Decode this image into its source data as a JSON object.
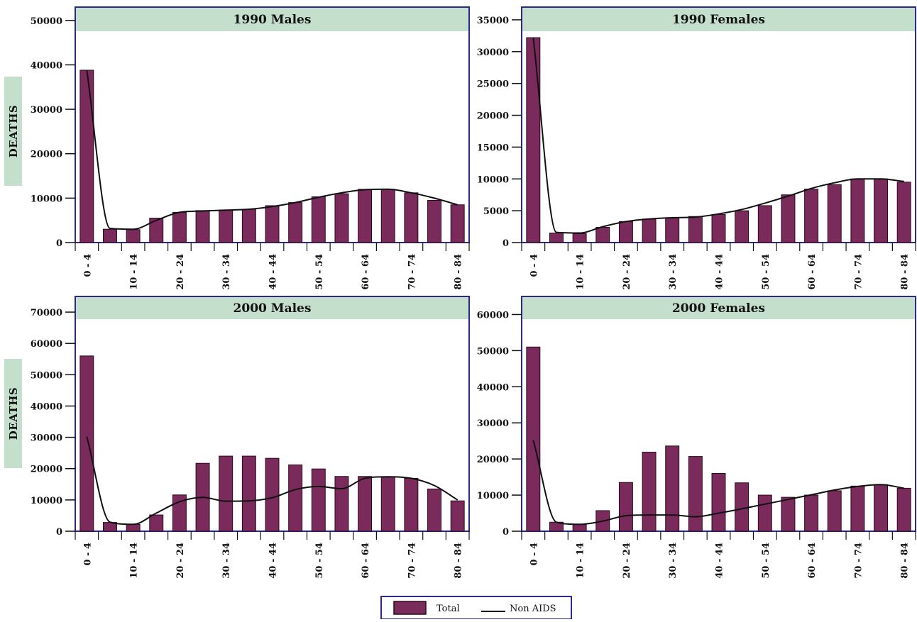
{
  "colors": {
    "bar": "#7b2a5c",
    "bar_stroke": "#2a0a1e",
    "line": "#111111",
    "frame": "#2b2a8a",
    "title_bg": "#c4e0cd",
    "side_label_bg": "#c4e0cd"
  },
  "side_labels": [
    "DEATHS",
    "DEATHS"
  ],
  "legend": {
    "total_label": "Total",
    "nonaids_label": "Non AIDS"
  },
  "chart_data": [
    {
      "type": "bar",
      "title": "1990 Males",
      "categories": [
        "0 - 4",
        "5 - 9",
        "10 - 14",
        "15 - 19",
        "20 - 24",
        "25 - 29",
        "30 - 34",
        "35 - 39",
        "40 - 44",
        "45 - 49",
        "50 - 54",
        "55 - 59",
        "60 - 64",
        "65 - 69",
        "70 - 74",
        "75 - 79",
        "80 - 84"
      ],
      "tick_labels": [
        "0 - 4",
        "",
        "10 - 14",
        "",
        "20 - 24",
        "",
        "30 - 34",
        "",
        "40 - 44",
        "",
        "50 - 54",
        "",
        "60 - 64",
        "",
        "70 - 74",
        "",
        "80 - 84"
      ],
      "ylim": [
        0,
        53000
      ],
      "yticks": [
        0,
        10000,
        20000,
        30000,
        40000,
        50000
      ],
      "series": [
        {
          "name": "Total",
          "values": [
            38800,
            3000,
            2900,
            5500,
            6800,
            7200,
            7300,
            7500,
            8300,
            9000,
            10300,
            11000,
            12000,
            12000,
            11200,
            9500,
            8500
          ]
        },
        {
          "name": "Non AIDS",
          "values": [
            38800,
            3200,
            3000,
            5000,
            6800,
            7100,
            7300,
            7500,
            8100,
            9000,
            10200,
            11200,
            11900,
            12000,
            11200,
            10000,
            8500
          ]
        }
      ]
    },
    {
      "type": "bar",
      "title": "1990 Females",
      "categories": [
        "0 - 4",
        "5 - 9",
        "10 - 14",
        "15 - 19",
        "20 - 24",
        "25 - 29",
        "30 - 34",
        "35 - 39",
        "40 - 44",
        "45 - 49",
        "50 - 54",
        "55 - 59",
        "60 - 64",
        "65 - 69",
        "70 - 74",
        "75 - 79",
        "80 - 84"
      ],
      "tick_labels": [
        "0 - 4",
        "",
        "10 - 14",
        "",
        "20 - 24",
        "",
        "30 - 34",
        "",
        "40 - 44",
        "",
        "50 - 54",
        "",
        "60 - 64",
        "",
        "70 - 74",
        "",
        "80 - 84"
      ],
      "ylim": [
        0,
        37000
      ],
      "yticks": [
        0,
        5000,
        10000,
        15000,
        20000,
        25000,
        30000,
        35000
      ],
      "series": [
        {
          "name": "Total",
          "values": [
            32200,
            1500,
            1400,
            2400,
            3300,
            3700,
            3900,
            4100,
            4400,
            5000,
            5800,
            7500,
            8400,
            9100,
            10000,
            10000,
            9500
          ]
        },
        {
          "name": "Non AIDS",
          "values": [
            32200,
            1600,
            1500,
            2500,
            3300,
            3700,
            3900,
            4000,
            4500,
            5200,
            6200,
            7300,
            8500,
            9400,
            10000,
            10000,
            9600
          ]
        }
      ]
    },
    {
      "type": "bar",
      "title": "2000 Males",
      "categories": [
        "0 - 4",
        "5 - 9",
        "10 - 14",
        "15 - 19",
        "20 - 24",
        "25 - 29",
        "30 - 34",
        "35 - 39",
        "40 - 44",
        "45 - 49",
        "50 - 54",
        "55 - 59",
        "60 - 64",
        "65 - 69",
        "70 - 74",
        "75 - 79",
        "80 - 84"
      ],
      "tick_labels": [
        "0 - 4",
        "",
        "10 - 14",
        "",
        "20 - 24",
        "",
        "30 - 34",
        "",
        "40 - 44",
        "",
        "50 - 54",
        "",
        "60 - 64",
        "",
        "70 - 74",
        "",
        "80 - 84"
      ],
      "ylim": [
        0,
        75000
      ],
      "yticks": [
        0,
        10000,
        20000,
        30000,
        40000,
        50000,
        60000,
        70000
      ],
      "series": [
        {
          "name": "Total",
          "values": [
            56000,
            2800,
            2200,
            5200,
            11600,
            21700,
            24000,
            24000,
            23300,
            21200,
            19900,
            17500,
            17500,
            17300,
            16900,
            13500,
            9700
          ]
        },
        {
          "name": "Non AIDS",
          "values": [
            30200,
            2900,
            2200,
            5800,
            9400,
            10800,
            9600,
            9700,
            10700,
            13300,
            14300,
            13600,
            16900,
            17400,
            16900,
            14600,
            10000
          ]
        }
      ]
    },
    {
      "type": "bar",
      "title": "2000 Females",
      "categories": [
        "0 - 4",
        "5 - 9",
        "10 - 14",
        "15 - 19",
        "20 - 24",
        "25 - 29",
        "30 - 34",
        "35 - 39",
        "40 - 44",
        "45 - 49",
        "50 - 54",
        "55 - 59",
        "60 - 64",
        "65 - 69",
        "70 - 74",
        "75 - 79",
        "80 - 84"
      ],
      "tick_labels": [
        "0 - 4",
        "",
        "10 - 14",
        "",
        "20 - 24",
        "",
        "30 - 34",
        "",
        "40 - 44",
        "",
        "50 - 54",
        "",
        "60 - 64",
        "",
        "70 - 74",
        "",
        "80 - 84"
      ],
      "ylim": [
        0,
        65000
      ],
      "yticks": [
        0,
        10000,
        20000,
        30000,
        40000,
        50000,
        60000
      ],
      "series": [
        {
          "name": "Total",
          "values": [
            51000,
            2500,
            1900,
            5700,
            13500,
            21900,
            23600,
            20700,
            16000,
            13400,
            10000,
            9400,
            10000,
            11200,
            12500,
            12900,
            11900
          ]
        },
        {
          "name": "Non AIDS",
          "values": [
            25200,
            2500,
            1900,
            2800,
            4300,
            4500,
            4500,
            4000,
            5000,
            6200,
            7500,
            8800,
            10100,
            11400,
            12400,
            12900,
            11900
          ]
        }
      ]
    }
  ]
}
